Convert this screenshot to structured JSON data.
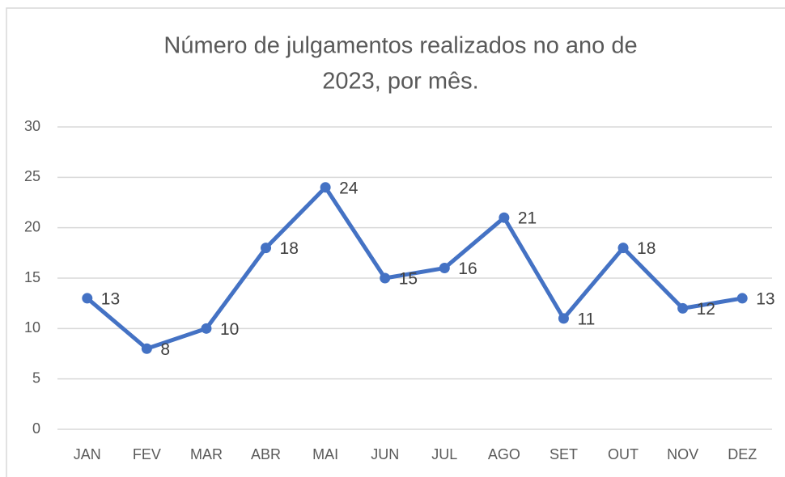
{
  "chart_data": {
    "type": "line",
    "title": [
      "Número de julgamentos realizados no ano de",
      "2023, por mês."
    ],
    "categories": [
      "JAN",
      "FEV",
      "MAR",
      "ABR",
      "MAI",
      "JUN",
      "JUL",
      "AGO",
      "SET",
      "OUT",
      "NOV",
      "DEZ"
    ],
    "series": [
      {
        "name": "Julgamentos",
        "color": "#4472c4",
        "values": [
          13,
          8,
          10,
          18,
          24,
          15,
          16,
          21,
          11,
          18,
          12,
          13
        ]
      }
    ],
    "ylim": [
      0,
      30
    ],
    "yticks": [
      0,
      5,
      10,
      15,
      20,
      25,
      30
    ],
    "grid": true,
    "data_labels": true
  }
}
